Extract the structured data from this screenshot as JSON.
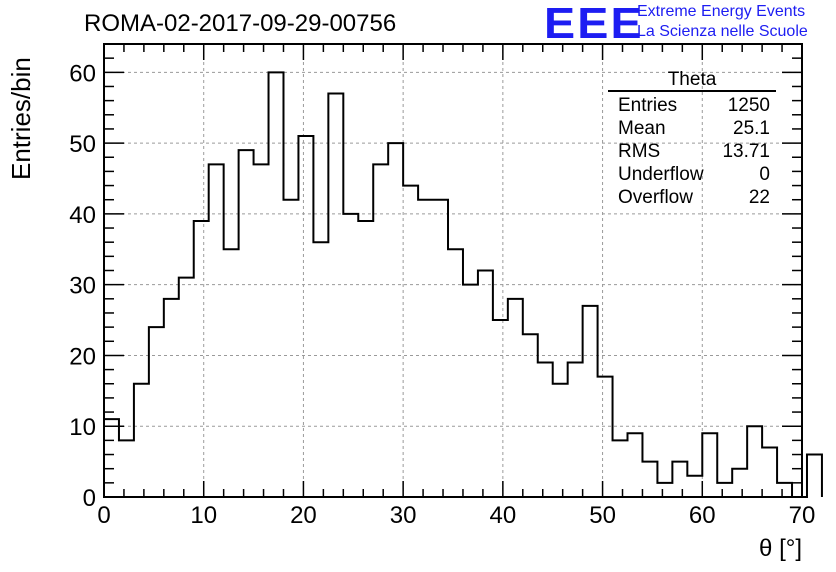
{
  "title": "ROMA-02-2017-09-29-00756",
  "logo": {
    "mark": "EEE",
    "line1": "Extreme Energy Events",
    "line2": "La Scienza nelle Scuole",
    "color": "#1d1df2"
  },
  "stats": {
    "title": "Theta",
    "rows": [
      {
        "label": "Entries",
        "value": "1250"
      },
      {
        "label": "Mean",
        "value": "25.1"
      },
      {
        "label": "RMS",
        "value": "13.71"
      },
      {
        "label": "Underflow",
        "value": "0"
      },
      {
        "label": "Overflow",
        "value": "22"
      }
    ]
  },
  "chart_data": {
    "type": "bar",
    "histogram_style": "step",
    "title": "ROMA-02-2017-09-29-00756",
    "xlabel": "θ [°]",
    "ylabel": "Entries/bin",
    "xlim": [
      0,
      70
    ],
    "ylim": [
      0,
      64
    ],
    "bin_width": 1.5,
    "x_ticks": [
      "0",
      "10",
      "20",
      "30",
      "40",
      "50",
      "60",
      "70"
    ],
    "y_ticks": [
      "0",
      "10",
      "20",
      "30",
      "40",
      "50",
      "60"
    ],
    "grid": true,
    "values": [
      11,
      8,
      16,
      24,
      28,
      31,
      39,
      47,
      35,
      49,
      47,
      60,
      42,
      51,
      36,
      57,
      40,
      39,
      47,
      50,
      44,
      42,
      42,
      35,
      30,
      32,
      25,
      28,
      23,
      19,
      16,
      19,
      27,
      17,
      8,
      9,
      5,
      2,
      5,
      3,
      9,
      2,
      4,
      10,
      7,
      2,
      0,
      6
    ]
  }
}
